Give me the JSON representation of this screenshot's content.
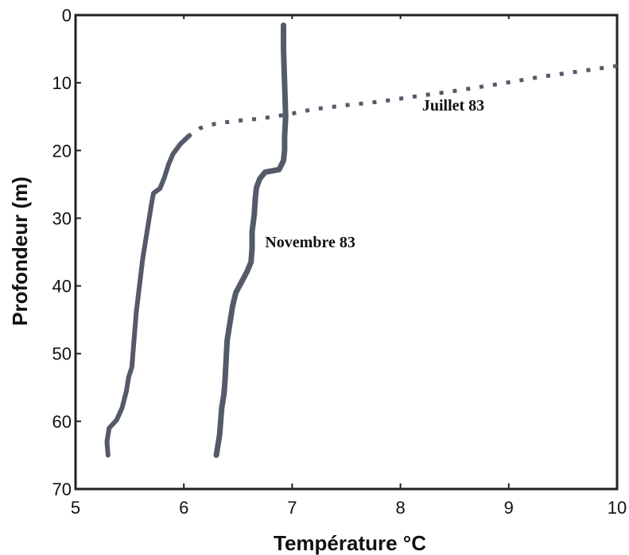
{
  "chart_data": {
    "type": "line",
    "xlabel": "Température °C",
    "ylabel": "Profondeur (m)",
    "xlim": [
      5,
      10
    ],
    "ylim": [
      0,
      70
    ],
    "y_inverted": true,
    "x_ticks": [
      5,
      6,
      7,
      8,
      9,
      10
    ],
    "y_ticks": [
      0,
      10,
      20,
      30,
      40,
      50,
      60,
      70
    ],
    "grid": false,
    "series": [
      {
        "name": "Juillet 83",
        "style": "dotted-then-solid",
        "color": "#555a6a",
        "points": [
          [
            10.0,
            7.5
          ],
          [
            9.7,
            8.2
          ],
          [
            9.3,
            9.1
          ],
          [
            8.9,
            10.2
          ],
          [
            8.5,
            11.2
          ],
          [
            8.1,
            12.1
          ],
          [
            7.8,
            12.8
          ],
          [
            7.5,
            13.3
          ],
          [
            7.2,
            13.9
          ],
          [
            6.95,
            14.7
          ],
          [
            6.7,
            15.3
          ],
          [
            6.5,
            15.6
          ],
          [
            6.3,
            16.0
          ],
          [
            6.15,
            16.7
          ],
          [
            6.05,
            17.8
          ],
          [
            5.97,
            19.0
          ],
          [
            5.9,
            20.5
          ],
          [
            5.86,
            22.0
          ],
          [
            5.82,
            24.0
          ],
          [
            5.78,
            25.6
          ],
          [
            5.72,
            26.3
          ],
          [
            5.7,
            28.0
          ],
          [
            5.68,
            30.0
          ],
          [
            5.65,
            33.0
          ],
          [
            5.62,
            36.0
          ],
          [
            5.59,
            40.0
          ],
          [
            5.56,
            44.0
          ],
          [
            5.54,
            48.0
          ],
          [
            5.52,
            52.0
          ],
          [
            5.49,
            53.5
          ],
          [
            5.47,
            55.5
          ],
          [
            5.43,
            58.0
          ],
          [
            5.38,
            59.8
          ],
          [
            5.31,
            61.0
          ],
          [
            5.29,
            63.0
          ],
          [
            5.3,
            65.0
          ]
        ]
      },
      {
        "name": "Novembre 83",
        "style": "solid",
        "color": "#555a6a",
        "points": [
          [
            6.92,
            1.5
          ],
          [
            6.92,
            5.0
          ],
          [
            6.93,
            10.0
          ],
          [
            6.94,
            15.0
          ],
          [
            6.93,
            18.0
          ],
          [
            6.93,
            20.0
          ],
          [
            6.92,
            21.5
          ],
          [
            6.88,
            22.8
          ],
          [
            6.75,
            23.2
          ],
          [
            6.7,
            24.2
          ],
          [
            6.67,
            25.5
          ],
          [
            6.66,
            27.0
          ],
          [
            6.65,
            29.5
          ],
          [
            6.63,
            32.0
          ],
          [
            6.63,
            34.5
          ],
          [
            6.62,
            36.5
          ],
          [
            6.58,
            38.0
          ],
          [
            6.53,
            39.5
          ],
          [
            6.48,
            41.0
          ],
          [
            6.45,
            43.0
          ],
          [
            6.43,
            45.0
          ],
          [
            6.4,
            48.0
          ],
          [
            6.39,
            51.0
          ],
          [
            6.38,
            54.0
          ],
          [
            6.37,
            56.0
          ],
          [
            6.35,
            58.0
          ],
          [
            6.34,
            60.0
          ],
          [
            6.33,
            62.0
          ],
          [
            6.31,
            64.0
          ],
          [
            6.3,
            65.0
          ]
        ]
      }
    ],
    "annotations": [
      {
        "text": "Juillet 83",
        "x": 8.2,
        "y": 13.3
      },
      {
        "text": "Novembre 83",
        "x": 6.75,
        "y": 33.5
      }
    ]
  }
}
